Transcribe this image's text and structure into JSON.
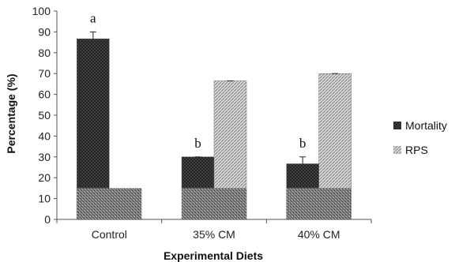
{
  "chart_data": {
    "type": "bar",
    "categories": [
      "Control",
      "35% CM",
      "40% CM"
    ],
    "series": [
      {
        "name": "Mortality",
        "values": [
          86.7,
          30,
          26.7
        ],
        "errors": [
          3.3,
          0,
          3.3
        ],
        "letters": [
          "a",
          "b",
          "b"
        ],
        "pattern": "dark-crosshatch"
      },
      {
        "name": "RPS",
        "values": [
          null,
          66.5,
          70
        ],
        "errors": [
          null,
          0,
          0
        ],
        "pattern": "light-diagonal"
      }
    ],
    "xlabel": "Experimental Diets",
    "ylabel": "Percentage (%)",
    "ylim": [
      0,
      100
    ],
    "yticks": [
      0,
      10,
      20,
      30,
      40,
      50,
      60,
      70,
      80,
      90,
      100
    ],
    "grid": false,
    "legend_position": "right",
    "colors": {
      "mortality": "#3a3a3a",
      "rps": "#b8b8b8",
      "axis": "#555555",
      "stipple": "#6a6a6a"
    }
  }
}
